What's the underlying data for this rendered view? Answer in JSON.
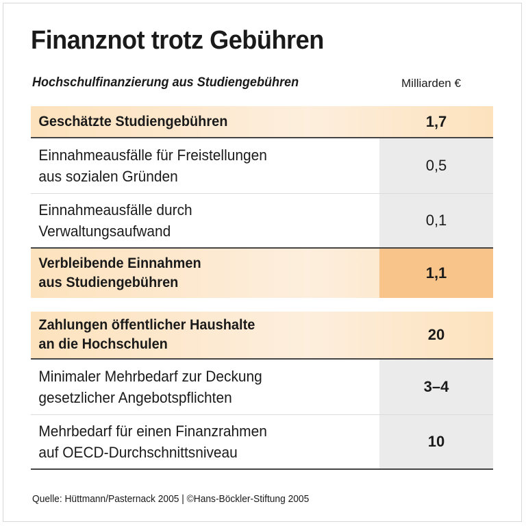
{
  "title": "Finanznot trotz Gebühren",
  "subtitle": "Hochschulfinanzierung aus  Studiengebühren",
  "unit": "Milliarden €",
  "rows": [
    {
      "label": "Geschätzte Studiengebühren",
      "value": "1,7"
    },
    {
      "label": "Einnahmeausfälle für Freistellungen\naus sozialen Gründen",
      "value": "0,5"
    },
    {
      "label": "Einnahmeausfälle durch\nVerwaltungsaufwand",
      "value": "0,1"
    },
    {
      "label": "Verbleibende Einnahmen\naus Studiengebühren",
      "value": "1,1"
    },
    {
      "label": "Zahlungen öffentlicher Haushalte\nan die Hochschulen",
      "value": "20"
    },
    {
      "label": "Minimaler Mehrbedarf zur Deckung\ngesetzlicher Angebotspflichten",
      "value": "3–4"
    },
    {
      "label": "Mehrbedarf für einen Finanzrahmen\nauf OECD-Durchschnittsniveau",
      "value": "10"
    }
  ],
  "footer": "Quelle: Hüttmann/Pasternack 2005 | ©Hans-Böckler-Stiftung 2005",
  "colors": {
    "highlight": "#fde2bd",
    "highlight_strong": "#f8c48a",
    "value_cell": "#ebebeb"
  }
}
